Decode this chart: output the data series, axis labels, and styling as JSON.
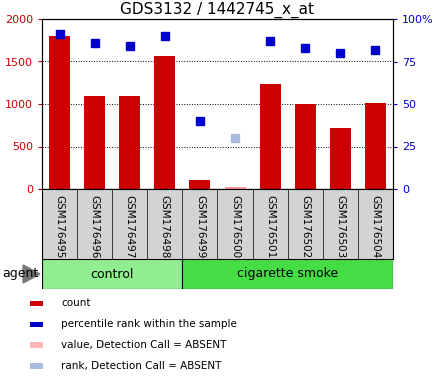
{
  "title": "GDS3132 / 1442745_x_at",
  "samples": [
    "GSM176495",
    "GSM176496",
    "GSM176497",
    "GSM176498",
    "GSM176499",
    "GSM176500",
    "GSM176501",
    "GSM176502",
    "GSM176503",
    "GSM176504"
  ],
  "bar_values": [
    1800,
    1090,
    1090,
    1570,
    110,
    20,
    1240,
    1000,
    720,
    1010
  ],
  "bar_absent": [
    false,
    false,
    false,
    false,
    false,
    true,
    false,
    false,
    false,
    false
  ],
  "percentile_values": [
    91,
    86,
    84,
    90,
    40,
    30,
    87,
    83,
    80,
    82
  ],
  "percentile_absent": [
    false,
    false,
    false,
    false,
    false,
    true,
    false,
    false,
    false,
    false
  ],
  "ylim_left": [
    0,
    2000
  ],
  "ylim_right": [
    0,
    100
  ],
  "yticks_left": [
    0,
    500,
    1000,
    1500,
    2000
  ],
  "ytick_labels_left": [
    "0",
    "500",
    "1000",
    "1500",
    "2000"
  ],
  "yticks_right": [
    0,
    25,
    50,
    75,
    100
  ],
  "ytick_labels_right": [
    "0",
    "25",
    "50",
    "75",
    "100%"
  ],
  "groups": [
    {
      "label": "control",
      "start": 0,
      "end": 4,
      "color": "#90EE90"
    },
    {
      "label": "cigarette smoke",
      "start": 4,
      "end": 10,
      "color": "#44DD44"
    }
  ],
  "bar_color_normal": "#CC0000",
  "bar_color_absent": "#FF9999",
  "dot_color_normal": "#0000CC",
  "dot_color_absent": "#AABBDD",
  "legend_labels": [
    "count",
    "percentile rank within the sample",
    "value, Detection Call = ABSENT",
    "rank, Detection Call = ABSENT"
  ],
  "legend_colors": [
    "#CC0000",
    "#0000CC",
    "#FFB6B6",
    "#AABBDD"
  ],
  "agent_label": "agent"
}
